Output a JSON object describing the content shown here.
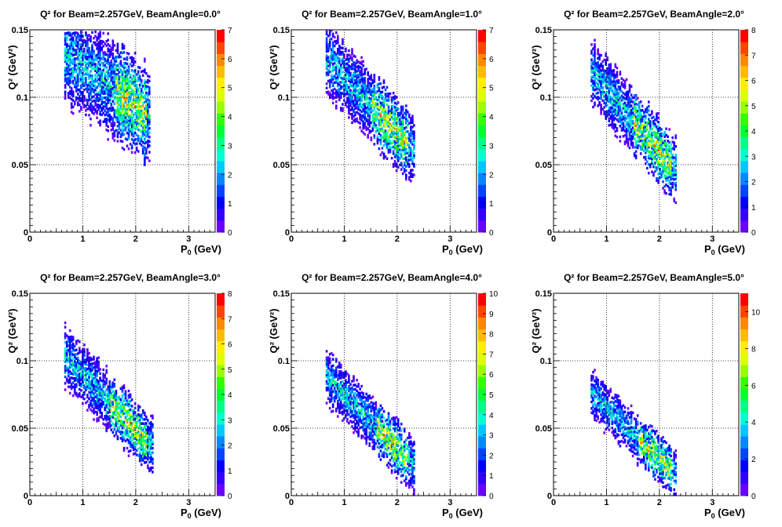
{
  "colors": {
    "palette": [
      "#6a00ff",
      "#3300ff",
      "#0000ff",
      "#0044ff",
      "#0088ff",
      "#00c8ff",
      "#00ffd0",
      "#00ff88",
      "#00ff33",
      "#33ff00",
      "#99ff00",
      "#ddff00",
      "#ffee00",
      "#ffbb00",
      "#ff8800",
      "#ff4400",
      "#ff0000"
    ],
    "grid": "#000000"
  },
  "chart_data": [
    {
      "type": "heatmap",
      "title": "Q² for Beam=2.257GeV, BeamAngle=0.0°",
      "xlabel": "P_0 (GeV)",
      "ylabel": "Q² (GeV²)",
      "xlim": [
        0,
        3.5
      ],
      "ylim": [
        0,
        0.15
      ],
      "x_ticks": [
        "0",
        "1",
        "2",
        "3"
      ],
      "y_ticks": [
        "0",
        "0.05",
        "0.1",
        "0.15"
      ],
      "zlim": [
        0,
        7
      ],
      "z_ticks": [
        "0",
        "1",
        "2",
        "3",
        "4",
        "5",
        "6",
        "7"
      ],
      "grid": true,
      "band": {
        "x_range": [
          0.65,
          2.25
        ],
        "q2_center_at": [
          [
            0.65,
            0.132
          ],
          [
            2.25,
            0.085
          ]
        ],
        "half_width": 0.035,
        "x_left_edge_clip": 0.148,
        "peak_region": [
          1.6,
          2.2
        ]
      }
    },
    {
      "type": "heatmap",
      "title": "Q² for Beam=2.257GeV, BeamAngle=1.0°",
      "xlabel": "P_0 (GeV)",
      "ylabel": "Q² (GeV²)",
      "xlim": [
        0,
        3.5
      ],
      "ylim": [
        0,
        0.15
      ],
      "x_ticks": [
        "0",
        "1",
        "2",
        "3"
      ],
      "y_ticks": [
        "0",
        "0.05",
        "0.1",
        "0.15"
      ],
      "zlim": [
        0,
        7
      ],
      "z_ticks": [
        "0",
        "1",
        "2",
        "3",
        "4",
        "5",
        "6",
        "7"
      ],
      "grid": true,
      "band": {
        "x_range": [
          0.65,
          2.3
        ],
        "q2_center_at": [
          [
            0.65,
            0.128
          ],
          [
            2.3,
            0.06
          ]
        ],
        "half_width": 0.026,
        "peak_region": [
          1.5,
          2.2
        ]
      }
    },
    {
      "type": "heatmap",
      "title": "Q² for Beam=2.257GeV, BeamAngle=2.0°",
      "xlabel": "P_0 (GeV)",
      "ylabel": "Q² (GeV²)",
      "xlim": [
        0,
        3.5
      ],
      "ylim": [
        0,
        0.15
      ],
      "x_ticks": [
        "0",
        "1",
        "2",
        "3"
      ],
      "y_ticks": [
        "0",
        "0.05",
        "0.1",
        "0.15"
      ],
      "zlim": [
        0,
        8
      ],
      "z_ticks": [
        "0",
        "1",
        "2",
        "3",
        "4",
        "5",
        "6",
        "7",
        "8"
      ],
      "grid": true,
      "band": {
        "x_range": [
          0.7,
          2.3
        ],
        "q2_center_at": [
          [
            0.7,
            0.118
          ],
          [
            2.3,
            0.045
          ]
        ],
        "half_width": 0.024,
        "peak_region": [
          1.5,
          2.2
        ]
      }
    },
    {
      "type": "heatmap",
      "title": "Q² for Beam=2.257GeV, BeamAngle=3.0°",
      "xlabel": "P_0 (GeV)",
      "ylabel": "Q² (GeV²)",
      "xlim": [
        0,
        3.5
      ],
      "ylim": [
        0,
        0.15
      ],
      "x_ticks": [
        "0",
        "1",
        "2",
        "3"
      ],
      "y_ticks": [
        "0",
        "0.05",
        "0.1",
        "0.15"
      ],
      "zlim": [
        0,
        8
      ],
      "z_ticks": [
        "0",
        "1",
        "2",
        "3",
        "4",
        "5",
        "6",
        "7",
        "8"
      ],
      "grid": true,
      "band": {
        "x_range": [
          0.65,
          2.3
        ],
        "q2_center_at": [
          [
            0.65,
            0.103
          ],
          [
            2.3,
            0.035
          ]
        ],
        "half_width": 0.022,
        "peak_region": [
          1.5,
          2.2
        ]
      }
    },
    {
      "type": "heatmap",
      "title": "Q² for Beam=2.257GeV, BeamAngle=4.0°",
      "xlabel": "P_0 (GeV)",
      "ylabel": "Q² (GeV²)",
      "xlim": [
        0,
        3.5
      ],
      "ylim": [
        0,
        0.15
      ],
      "x_ticks": [
        "0",
        "1",
        "2",
        "3"
      ],
      "y_ticks": [
        "0",
        "0.05",
        "0.1",
        "0.15"
      ],
      "zlim": [
        0,
        10
      ],
      "z_ticks": [
        "0",
        "1",
        "2",
        "3",
        "4",
        "5",
        "6",
        "7",
        "8",
        "9",
        "10"
      ],
      "grid": true,
      "band": {
        "x_range": [
          0.65,
          2.3
        ],
        "q2_center_at": [
          [
            0.65,
            0.088
          ],
          [
            2.3,
            0.022
          ]
        ],
        "half_width": 0.02,
        "peak_region": [
          1.6,
          2.2
        ]
      }
    },
    {
      "type": "heatmap",
      "title": "Q² for Beam=2.257GeV, BeamAngle=5.0°",
      "xlabel": "P_0 (GeV)",
      "ylabel": "Q² (GeV²)",
      "xlim": [
        0,
        3.5
      ],
      "ylim": [
        0,
        0.15
      ],
      "x_ticks": [
        "0",
        "1",
        "2",
        "3"
      ],
      "y_ticks": [
        "0",
        "0.05",
        "0.1",
        "0.15"
      ],
      "zlim": [
        0,
        11
      ],
      "z_ticks": [
        "0",
        "2",
        "4",
        "6",
        "8",
        "10"
      ],
      "z_tick_values": [
        0,
        2,
        4,
        6,
        8,
        10
      ],
      "grid": true,
      "band": {
        "x_range": [
          0.7,
          2.3
        ],
        "q2_center_at": [
          [
            0.7,
            0.075
          ],
          [
            2.3,
            0.015
          ]
        ],
        "half_width": 0.018,
        "peak_region": [
          1.6,
          2.2
        ]
      }
    }
  ]
}
